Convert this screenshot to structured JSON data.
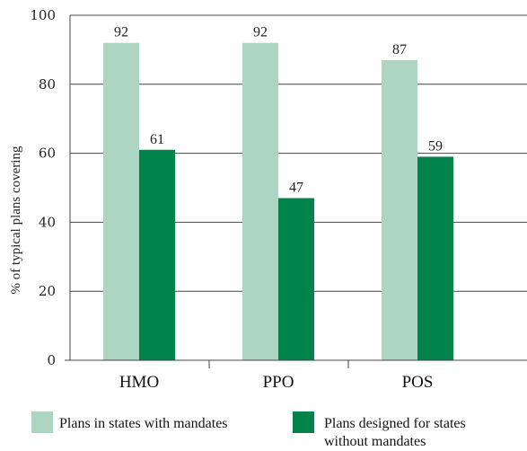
{
  "chart_data": {
    "type": "bar",
    "categories": [
      "HMO",
      "PPO",
      "POS"
    ],
    "series": [
      {
        "name": "Plans in states with mandates",
        "values": [
          92,
          92,
          87
        ],
        "color": "#acd6c1"
      },
      {
        "name": "Plans designed for states without mandates",
        "values": [
          61,
          47,
          59
        ],
        "color": "#00844b"
      }
    ],
    "legend_lines": [
      [
        "Plans in states with mandates"
      ],
      [
        "Plans designed for states",
        "without mandates"
      ]
    ],
    "title": "",
    "xlabel": "",
    "ylabel": "% of typical plans covering",
    "ylim": [
      0,
      100
    ],
    "yticks": [
      0,
      20,
      40,
      60,
      80,
      100
    ],
    "grid": true,
    "legend_position": "bottom"
  }
}
